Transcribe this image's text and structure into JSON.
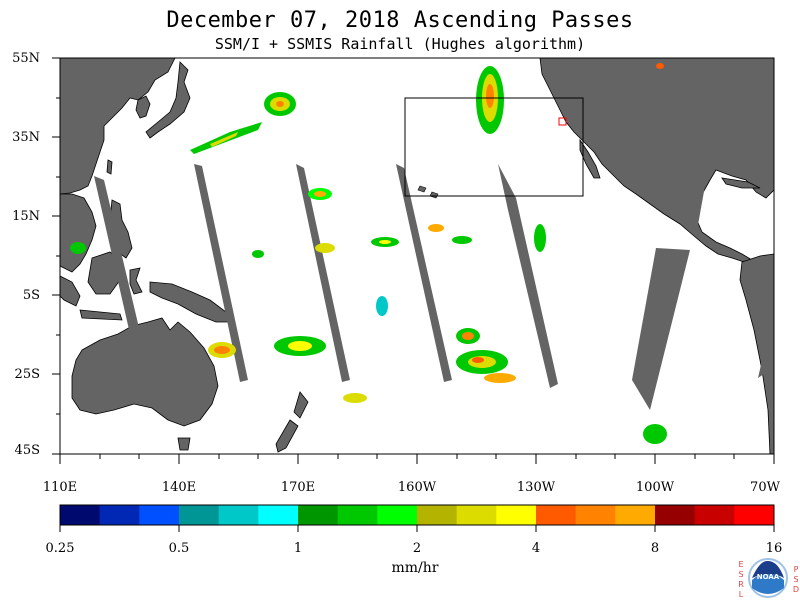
{
  "title": "December 07, 2018  Ascending Passes",
  "subtitle": "SSM/I + SSMIS Rainfall (Hughes algorithm)",
  "lat_labels": [
    "55N",
    "35N",
    "15N",
    "5S",
    "25S",
    "45S"
  ],
  "lon_labels": [
    "110E",
    "140E",
    "170E",
    "160W",
    "130W",
    "100W",
    "70W"
  ],
  "colorbar": {
    "tick_labels": [
      "0.25",
      "0.5",
      "1",
      "2",
      "4",
      "8",
      "16"
    ],
    "units": "mm/hr",
    "colors": [
      "#000a6e",
      "#0028b4",
      "#0050ff",
      "#009696",
      "#00c8c8",
      "#00ffff",
      "#009600",
      "#00c800",
      "#00ff00",
      "#b4b400",
      "#dcdc00",
      "#ffff00",
      "#ff5a00",
      "#ff8200",
      "#ffaa00",
      "#960000",
      "#c80000",
      "#ff0000"
    ]
  },
  "colors": {
    "land": "#646464",
    "swath_gap": "#646464",
    "background": "#ffffff"
  },
  "logo": {
    "left_letters": "ESRL",
    "right_letters": "PSD",
    "name": "NOAA"
  }
}
